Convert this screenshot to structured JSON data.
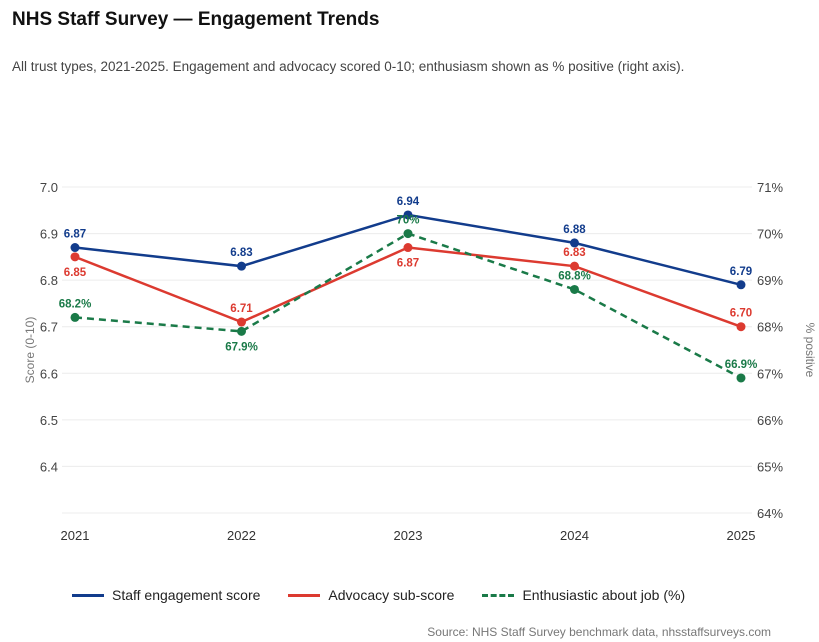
{
  "title": "NHS Staff Survey — Engagement Trends",
  "subtitle": "All trust types, 2021-2025. Engagement and advocacy scored 0-10; enthusiasm shown as % positive (right axis).",
  "source": "Source: NHS Staff Survey benchmark data, nhsstaffsurveys.com",
  "chart_data": {
    "type": "line",
    "title": "NHS Staff Survey — Engagement Trends",
    "categories": [
      "2021",
      "2022",
      "2023",
      "2024",
      "2025"
    ],
    "ylabel": "Score (0-10)",
    "y2label": "% positive",
    "ylim": [
      6.3,
      7.0
    ],
    "y2lim": [
      64,
      71
    ],
    "yticks": [
      "6.4",
      "6.5",
      "6.6",
      "6.7",
      "6.8",
      "6.9",
      "7.0"
    ],
    "y2ticks": [
      "64%",
      "65%",
      "66%",
      "67%",
      "68%",
      "69%",
      "70%",
      "71%"
    ],
    "grid": true,
    "legend_position": "bottom",
    "series": [
      {
        "name": "Staff engagement score",
        "axis": "left",
        "color": "#123c8c",
        "dashed": false,
        "values": [
          6.87,
          6.83,
          6.94,
          6.88,
          6.79
        ],
        "labels": [
          "6.87",
          "6.83",
          "6.94",
          "6.88",
          "6.79"
        ]
      },
      {
        "name": "Advocacy sub-score",
        "axis": "left",
        "color": "#dc3a30",
        "dashed": false,
        "values": [
          6.85,
          6.71,
          6.87,
          6.83,
          6.7
        ],
        "labels": [
          "6.85",
          "6.71",
          "6.87",
          "6.83",
          "6.70"
        ]
      },
      {
        "name": "Enthusiastic about job (%)",
        "axis": "right",
        "color": "#1a7a48",
        "dashed": true,
        "values": [
          68.2,
          67.9,
          70,
          68.8,
          66.9
        ],
        "labels": [
          "68.2%",
          "67.9%",
          "70%",
          "68.8%",
          "66.9%"
        ]
      }
    ]
  }
}
